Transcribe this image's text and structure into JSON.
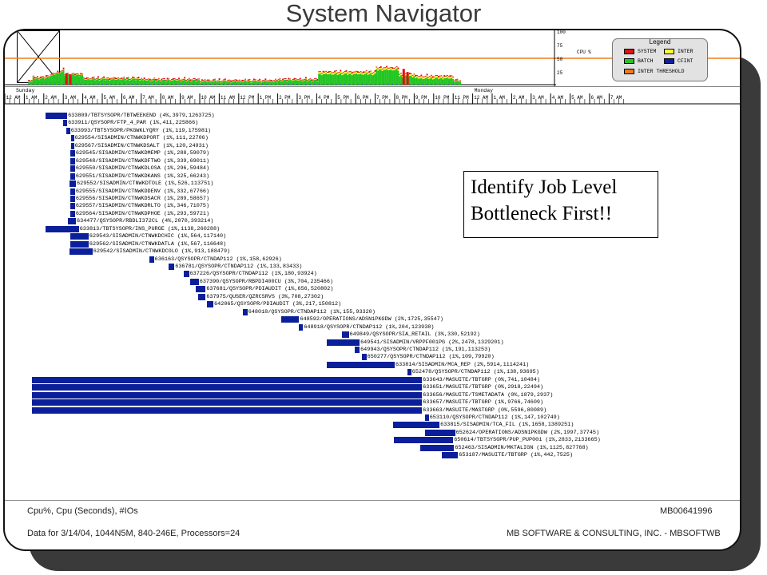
{
  "title": "System Navigator",
  "cpu_chart": {
    "axis_values": [
      "100",
      "75",
      "50",
      "25"
    ],
    "axis_unit": "CPU %",
    "threshold_value": 50,
    "colors": {
      "system": "#e01010",
      "inter": "#ffff30",
      "batch": "#22c522",
      "cfint": "#0b1f9a",
      "threshold": "#f07a1a"
    }
  },
  "legend": {
    "title": "Legend",
    "items": [
      {
        "label": "SYSTEM",
        "color": "#e01010"
      },
      {
        "label": "INTER",
        "color": "#ffff30"
      },
      {
        "label": "BATCH",
        "color": "#22c522"
      },
      {
        "label": "CFINT",
        "color": "#0b1f9a"
      },
      {
        "label": "INTER THRESHOLD",
        "color": "#f07a1a"
      }
    ]
  },
  "timeline": {
    "day1": "Sunday",
    "day2": "Monday",
    "hour_labels": [
      "12 AM",
      "1 AM",
      "2 AM",
      "3 AM",
      "4 AM",
      "5 AM",
      "6 AM",
      "7 AM",
      "8 AM",
      "9 AM",
      "10 AM",
      "11 AM",
      "12 PM",
      "1 PM",
      "2 PM",
      "3 PM",
      "4 PM",
      "5 PM",
      "6 PM",
      "7 PM",
      "8 PM",
      "9 PM",
      "10 PM",
      "11 PM",
      "12 AM",
      "1 AM",
      "2 AM",
      "3 AM",
      "4 AM",
      "5 AM",
      "6 AM",
      "7 AM"
    ]
  },
  "jobs": [
    {
      "label": "633809/TBTSYSOPR/TBTWEEKEND (4%,3979,1263725)",
      "start": 2.1,
      "end": 3.2
    },
    {
      "label": "633911/QSYSOPR/FTP_4_PAR (1%,411,225866)",
      "start": 3.0,
      "end": 3.2
    },
    {
      "label": "633993/TBTSYSOPR/PKGWKLYQRY (1%,119,175981)",
      "start": 3.15,
      "end": 3.35
    },
    {
      "label": "629554/SISADMIN/CTNWKDPORT (1%,111,22706)",
      "start": 3.4,
      "end": 3.55
    },
    {
      "label": "629567/SISADMIN/CTNWKDSALT (1%,120,24931)",
      "start": 3.4,
      "end": 3.55
    },
    {
      "label": "629545/SISADMIN/CTNWKDMEMP (1%,288,59079)",
      "start": 3.35,
      "end": 3.6
    },
    {
      "label": "629548/SISADMIN/CTNWKDFTWO (1%,339,69011)",
      "start": 3.35,
      "end": 3.6
    },
    {
      "label": "629550/SISADMIN/CTNWKDLOSA (1%,296,59484)",
      "start": 3.35,
      "end": 3.6
    },
    {
      "label": "629551/SISADMIN/CTNWKDKANS (1%,325,66243)",
      "start": 3.35,
      "end": 3.6
    },
    {
      "label": "629552/SISADMIN/CTNWKDTOLE (1%,526,113751)",
      "start": 3.3,
      "end": 3.65
    },
    {
      "label": "629555/SISADMIN/CTNWKDDENV (1%,332,67766)",
      "start": 3.35,
      "end": 3.6
    },
    {
      "label": "629556/SISADMIN/CTNWKDSACR (1%,289,58657)",
      "start": 3.35,
      "end": 3.6
    },
    {
      "label": "629557/SISADMIN/CTNWKDRLTO (1%,346,71075)",
      "start": 3.35,
      "end": 3.6
    },
    {
      "label": "629564/SISADMIN/CTNWKDPHOE (1%,293,59721)",
      "start": 3.35,
      "end": 3.6
    },
    {
      "label": "634477/QSYSOPR/RBDLI372CL (4%,2070,393214)",
      "start": 3.25,
      "end": 3.65
    },
    {
      "label": "633813/TBTSYSOPR/INS_PURGE (1%,1138,260288)",
      "start": 2.1,
      "end": 3.8
    },
    {
      "label": "629543/SISADMIN/CTNWKDCHIC (1%,564,117140)",
      "start": 3.35,
      "end": 4.3
    },
    {
      "label": "629562/SISADMIN/CTNWKDATLA (1%,567,116648)",
      "start": 3.35,
      "end": 4.3
    },
    {
      "label": "629542/SISADMIN/CTNWKDCOLO (1%,913,188479)",
      "start": 3.3,
      "end": 4.5
    },
    {
      "label": "636163/QSYSOPR/CTNDAP112 (1%,158,62926)",
      "start": 7.4,
      "end": 7.65
    },
    {
      "label": "636781/QSYSOPR/CTNDAP112 (1%,133,83433)",
      "start": 8.4,
      "end": 8.7
    },
    {
      "label": "637226/QSYSOPR/CTNDAP112 (1%,180,93924)",
      "start": 9.2,
      "end": 9.45
    },
    {
      "label": "637390/QSYSOPR/RBPDI400CU (3%,704,235466)",
      "start": 9.5,
      "end": 9.95
    },
    {
      "label": "637681/QSYSOPR/PDIAUDIT (1%,656,520802)",
      "start": 9.8,
      "end": 10.3
    },
    {
      "label": "637975/QUSER/QZRCSRVS (3%,708,27302)",
      "start": 9.9,
      "end": 10.3
    },
    {
      "label": "642065/QSYSOPR/PDIAUDIT (3%,217,150812)",
      "start": 10.35,
      "end": 10.7
    },
    {
      "label": "648018/QSYSOPR/CTNDAP112 (1%,155,93320)",
      "start": 12.2,
      "end": 12.45
    },
    {
      "label": "648592/OPERATIONS/ADSN1PKGDW (2%,1725,35547)",
      "start": 14.2,
      "end": 15.1
    },
    {
      "label": "648918/QSYSOPR/CTNDAP112 (1%,204,123938)",
      "start": 15.1,
      "end": 15.3
    },
    {
      "label": "649849/QSYSOPR/SIA_RETAIL (3%,330,52192)",
      "start": 17.3,
      "end": 17.65
    },
    {
      "label": "649541/SISADMIN/VRPPF001PG (2%,2478,1329201)",
      "start": 16.5,
      "end": 18.2
    },
    {
      "label": "649943/QSYSOPR/CTNDAP112 (1%,191,113253)",
      "start": 17.95,
      "end": 18.2
    },
    {
      "label": "650277/QSYSOPR/CTNDAP112 (1%,109,79920)",
      "start": 18.3,
      "end": 18.55
    },
    {
      "label": "633814/SISADMIN/MCA_REP (2%,5914,1114241)",
      "start": 16.5,
      "end": 20.0
    },
    {
      "label": "652478/QSYSOPR/CTNDAP112 (1%,138,93695)",
      "start": 20.65,
      "end": 20.85
    },
    {
      "label": "633643/MASUITE/TBTGRP (0%,741,10484)",
      "start": 1.4,
      "end": 21.4
    },
    {
      "label": "633651/MASUITE/TBTGRP (0%,2918,22494)",
      "start": 1.4,
      "end": 21.4
    },
    {
      "label": "633656/MASUITE/TSMETADATA (0%,1879,2937)",
      "start": 1.4,
      "end": 21.4
    },
    {
      "label": "633657/MASUITE/TBTGRP (1%,9766,74609)",
      "start": 1.4,
      "end": 21.4
    },
    {
      "label": "633663/MASUITE/MASTGRP (0%,5596,80089)",
      "start": 1.4,
      "end": 21.4
    },
    {
      "label": "653110/QSYSOPR/CTNDAP112 (1%,147,102749)",
      "start": 21.55,
      "end": 21.75
    },
    {
      "label": "633815/SISADMIN/TCA_FIL (1%,1658,1389251)",
      "start": 19.9,
      "end": 22.3
    },
    {
      "label": "652624/OPERATIONS/ADSN1PKGDW (2%,1997,37745)",
      "start": 21.55,
      "end": 23.1
    },
    {
      "label": "650614/TBTSYSOPR/PUP_PUP001 (1%,2833,2133665)",
      "start": 19.95,
      "end": 23.0
    },
    {
      "label": "652463/SISADMIN/MKTALIGN (1%,1125,827768)",
      "start": 21.3,
      "end": 23.05
    },
    {
      "label": "653187/MASUITE/TBTGRP (1%,442,7525)",
      "start": 22.4,
      "end": 23.25
    }
  ],
  "callout": {
    "line1": "Identify Job Level",
    "line2": "Bottleneck First!!"
  },
  "footer": {
    "metrics_label": "Cpu%, Cpu (Seconds), #IOs",
    "report_id": "MB00641996",
    "data_info": "Data for 3/14/04, 1044N5M, 840-246E, Processors=24",
    "company": "MB SOFTWARE & CONSULTING, INC. - MBSOFTWB"
  }
}
